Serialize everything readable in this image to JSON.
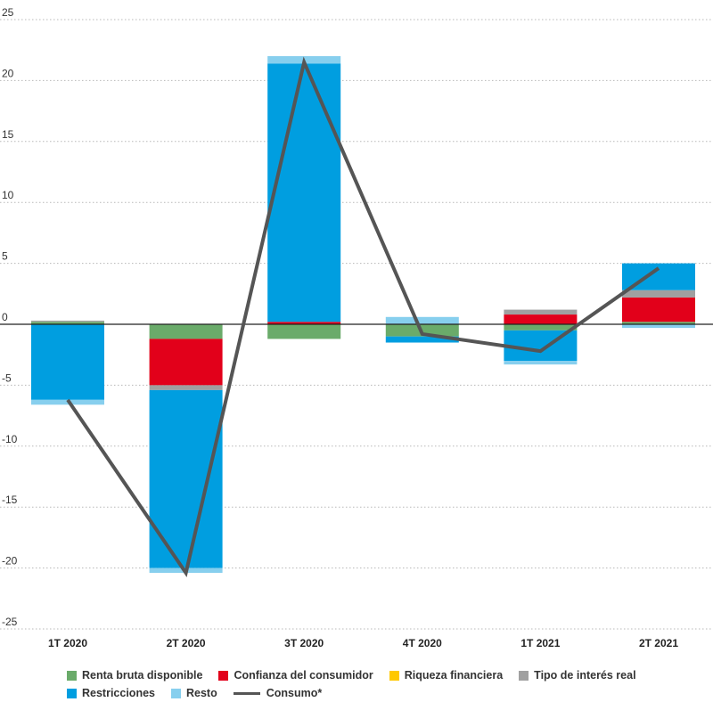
{
  "chart_data": {
    "type": "bar",
    "stacked": true,
    "categories": [
      "1T 2020",
      "2T 2020",
      "3T 2020",
      "4T 2020",
      "1T 2021",
      "2T 2021"
    ],
    "ylim": [
      -25,
      25
    ],
    "yticks": [
      25,
      20,
      15,
      10,
      5,
      0,
      -5,
      -10,
      -15,
      -20,
      -25
    ],
    "grid": "horizontal-dotted",
    "legend_position": "bottom",
    "series": [
      {
        "name": "Renta bruta disponible",
        "color": "#6aab6a",
        "values": [
          0.2,
          -1.2,
          -1.2,
          -1.0,
          -0.5,
          0.2
        ]
      },
      {
        "name": "Confianza del consumidor",
        "color": "#e2001a",
        "values": [
          0.0,
          -3.8,
          0.2,
          0.0,
          0.8,
          2.0
        ]
      },
      {
        "name": "Riqueza financiera",
        "color": "#ffc800",
        "values": [
          0.0,
          0.0,
          0.0,
          0.0,
          0.0,
          0.0
        ]
      },
      {
        "name": "Tipo de interés real",
        "color": "#a0a0a0",
        "values": [
          0.1,
          -0.4,
          0.0,
          0.0,
          0.4,
          0.6
        ]
      },
      {
        "name": "Restricciones",
        "color": "#009ee0",
        "values": [
          -6.2,
          -14.6,
          21.2,
          -0.5,
          -2.5,
          2.2
        ]
      },
      {
        "name": "Resto",
        "color": "#87cfee",
        "values": [
          -0.4,
          -0.4,
          0.6,
          0.6,
          -0.3,
          -0.3
        ]
      }
    ],
    "line_series": {
      "name": "Consumo*",
      "color": "#555555",
      "values": [
        -6.2,
        -20.4,
        21.5,
        -0.8,
        -2.2,
        4.6
      ]
    }
  },
  "legend": {
    "items": [
      {
        "label": "Renta bruta disponible",
        "color": "#6aab6a",
        "kind": "square"
      },
      {
        "label": "Confianza del consumidor",
        "color": "#e2001a",
        "kind": "square"
      },
      {
        "label": "Riqueza financiera",
        "color": "#ffc800",
        "kind": "square"
      },
      {
        "label": "Tipo de interés real",
        "color": "#a0a0a0",
        "kind": "square"
      },
      {
        "label": "Restricciones",
        "color": "#009ee0",
        "kind": "square"
      },
      {
        "label": "Resto",
        "color": "#87cfee",
        "kind": "square"
      },
      {
        "label": "Consumo*",
        "color": "#555555",
        "kind": "line"
      }
    ]
  }
}
